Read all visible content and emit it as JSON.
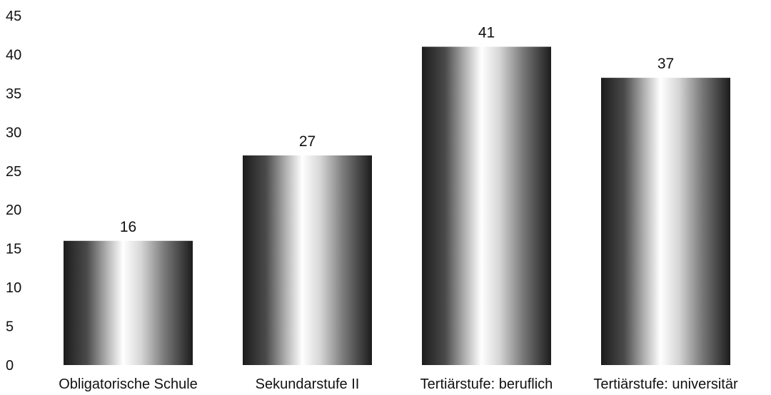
{
  "chart_data": {
    "type": "bar",
    "categories": [
      "Obligatorische Schule",
      "Sekundarstufe II",
      "Tertiärstufe: beruflich",
      "Tertiärstufe:  universitär"
    ],
    "values": [
      16,
      27,
      41,
      37
    ],
    "data_labels": [
      "16",
      "27",
      "41",
      "37"
    ],
    "title": "",
    "xlabel": "",
    "ylabel": "",
    "ylim": [
      0,
      45
    ],
    "yticks": [
      0,
      5,
      10,
      15,
      20,
      25,
      30,
      35,
      40,
      45
    ],
    "grid": false,
    "bar_style": "cylindrical grayscale gradient",
    "bar_colors": [
      "#1c1c1c",
      "#ffffff",
      "#1c1c1c"
    ]
  }
}
